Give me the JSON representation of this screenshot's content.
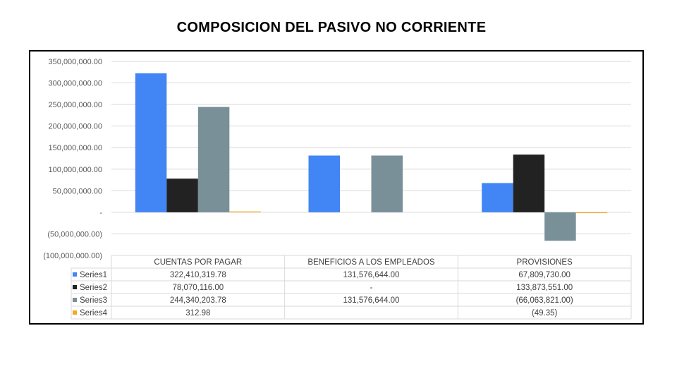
{
  "title": "COMPOSICION DEL PASIVO NO CORRIENTE",
  "chart_data": {
    "type": "bar",
    "title": "COMPOSICION DEL PASIVO NO CORRIENTE",
    "xlabel": "",
    "ylabel": "",
    "ylim": [
      -100000000,
      350000000
    ],
    "grid": true,
    "legend": "data-table",
    "y_ticks": [
      350000000,
      300000000,
      250000000,
      200000000,
      150000000,
      100000000,
      50000000,
      0,
      -50000000,
      -100000000
    ],
    "y_tick_labels": [
      "350,000,000.00",
      "300,000,000.00",
      "250,000,000.00",
      "200,000,000.00",
      "150,000,000.00",
      "100,000,000.00",
      "50,000,000.00",
      "-",
      "(50,000,000.00)",
      "(100,000,000.00)"
    ],
    "categories": [
      "CUENTAS POR PAGAR",
      "BENEFICIOS A LOS EMPLEADOS",
      "PROVISIONES"
    ],
    "series": [
      {
        "name": "Series1",
        "color": "#4285f4",
        "values": [
          322410319.78,
          131576644.0,
          67809730.0
        ],
        "labels": [
          "322,410,319.78",
          "131,576,644.00",
          "67,809,730.00"
        ]
      },
      {
        "name": "Series2",
        "color": "#222222",
        "values": [
          78070116.0,
          0,
          133873551.0
        ],
        "labels": [
          "78,070,116.00",
          "-",
          "133,873,551.00"
        ]
      },
      {
        "name": "Series3",
        "color": "#7a9099",
        "values": [
          244340203.78,
          131576644.0,
          -66063821.0
        ],
        "labels": [
          "244,340,203.78",
          "131,576,644.00",
          "(66,063,821.00)"
        ]
      },
      {
        "name": "Series4",
        "color": "#f5a623",
        "values": [
          312.98,
          null,
          -49.35
        ],
        "labels": [
          "312.98",
          "",
          "(49.35)"
        ]
      }
    ]
  }
}
